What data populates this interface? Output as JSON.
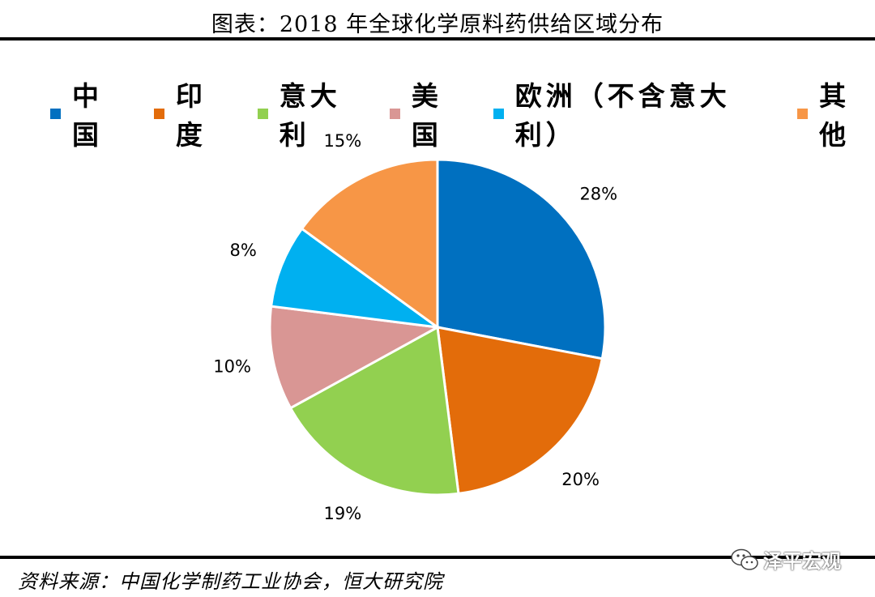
{
  "title": "图表：2018 年全球化学原料药供给区域分布",
  "source": "资料来源：中国化学制药工业协会，恒大研究院",
  "watermark": "泽平宏观",
  "chart_data": {
    "type": "pie",
    "title": "图表：2018 年全球化学原料药供给区域分布",
    "legend_position": "top",
    "slices": [
      {
        "label": "中国",
        "value": 28,
        "display": "28%",
        "color": "#0070C0"
      },
      {
        "label": "印度",
        "value": 20,
        "display": "20%",
        "color": "#E36C0A"
      },
      {
        "label": "意大利",
        "value": 19,
        "display": "19%",
        "color": "#92D050"
      },
      {
        "label": "美国",
        "value": 10,
        "display": "10%",
        "color": "#D99694"
      },
      {
        "label": "欧洲（不含意大利）",
        "value": 8,
        "display": "8%",
        "color": "#00B0F0"
      },
      {
        "label": "其他",
        "value": 15,
        "display": "15%",
        "color": "#F79646"
      }
    ]
  }
}
